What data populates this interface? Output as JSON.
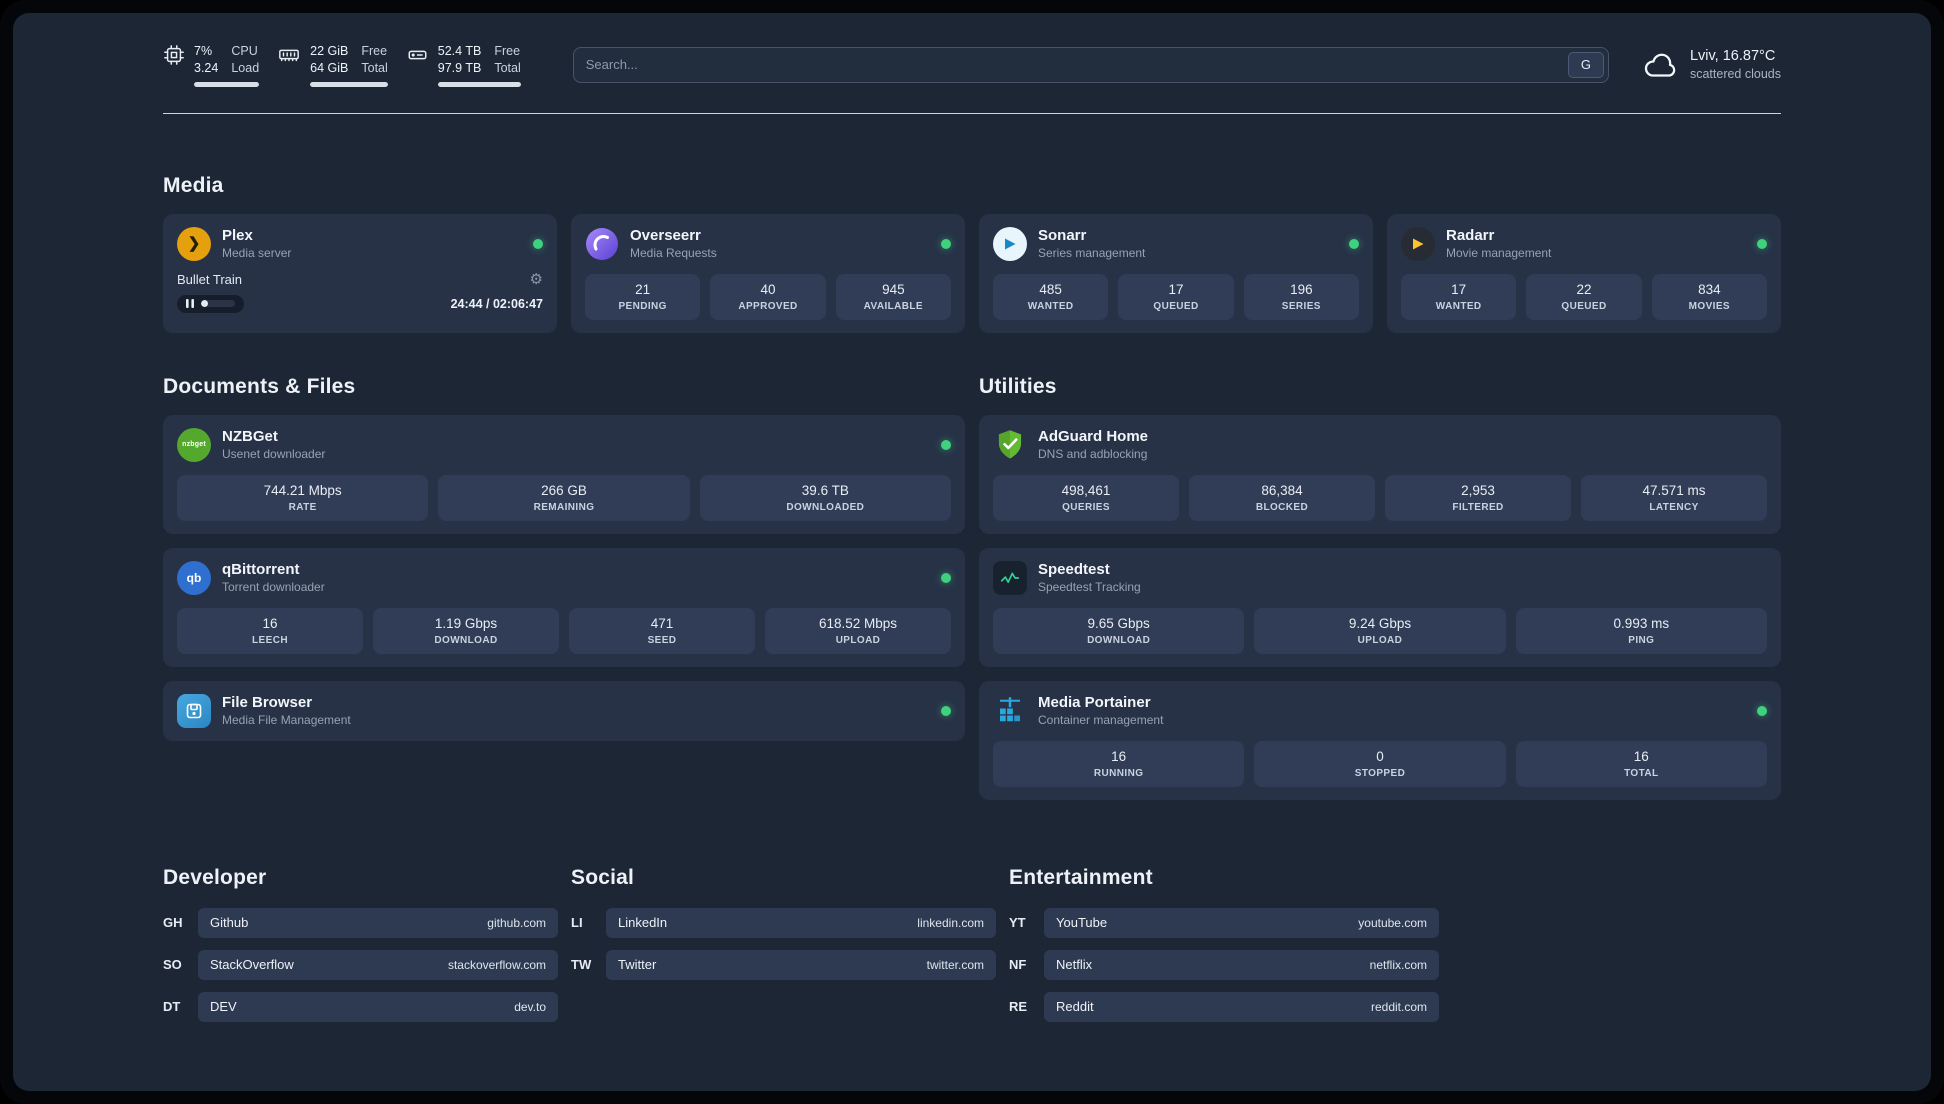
{
  "topbar": {
    "cpu": {
      "value": "7%",
      "value2": "3.24",
      "label": "CPU",
      "label2": "Load",
      "bar_pct": 100
    },
    "ram": {
      "value": "22 GiB",
      "value2": "64 GiB",
      "label": "Free",
      "label2": "Total",
      "bar_pct": 100
    },
    "disk": {
      "value": "52.4 TB",
      "value2": "97.9 TB",
      "label": "Free",
      "label2": "Total",
      "bar_pct": 100
    },
    "search": {
      "placeholder": "Search...",
      "provider_label": "G"
    },
    "weather": {
      "location": "Lviv, 16.87°C",
      "condition": "scattered clouds"
    }
  },
  "media": {
    "title": "Media",
    "plex": {
      "name": "Plex",
      "desc": "Media server",
      "now_playing": "Bullet Train",
      "time": "24:44 / 02:06:47",
      "progress_pct": 20
    },
    "overseerr": {
      "name": "Overseerr",
      "desc": "Media Requests",
      "stats": [
        {
          "value": "21",
          "label": "PENDING"
        },
        {
          "value": "40",
          "label": "APPROVED"
        },
        {
          "value": "945",
          "label": "AVAILABLE"
        }
      ]
    },
    "sonarr": {
      "name": "Sonarr",
      "desc": "Series management",
      "stats": [
        {
          "value": "485",
          "label": "WANTED"
        },
        {
          "value": "17",
          "label": "QUEUED"
        },
        {
          "value": "196",
          "label": "SERIES"
        }
      ]
    },
    "radarr": {
      "name": "Radarr",
      "desc": "Movie management",
      "stats": [
        {
          "value": "17",
          "label": "WANTED"
        },
        {
          "value": "22",
          "label": "QUEUED"
        },
        {
          "value": "834",
          "label": "MOVIES"
        }
      ]
    }
  },
  "documents": {
    "title": "Documents & Files",
    "nzbget": {
      "name": "NZBGet",
      "desc": "Usenet downloader",
      "icon_text": "nzbget",
      "stats": [
        {
          "value": "744.21 Mbps",
          "label": "RATE"
        },
        {
          "value": "266 GB",
          "label": "REMAINING"
        },
        {
          "value": "39.6 TB",
          "label": "DOWNLOADED"
        }
      ]
    },
    "qbittorrent": {
      "name": "qBittorrent",
      "desc": "Torrent downloader",
      "icon_text": "qb",
      "stats": [
        {
          "value": "16",
          "label": "LEECH"
        },
        {
          "value": "1.19 Gbps",
          "label": "DOWNLOAD"
        },
        {
          "value": "471",
          "label": "SEED"
        },
        {
          "value": "618.52 Mbps",
          "label": "UPLOAD"
        }
      ]
    },
    "filebrowser": {
      "name": "File Browser",
      "desc": "Media File Management"
    }
  },
  "utilities": {
    "title": "Utilities",
    "adguard": {
      "name": "AdGuard Home",
      "desc": "DNS and adblocking",
      "stats": [
        {
          "value": "498,461",
          "label": "QUERIES"
        },
        {
          "value": "86,384",
          "label": "BLOCKED"
        },
        {
          "value": "2,953",
          "label": "FILTERED"
        },
        {
          "value": "47.571 ms",
          "label": "LATENCY"
        }
      ]
    },
    "speedtest": {
      "name": "Speedtest",
      "desc": "Speedtest Tracking",
      "stats": [
        {
          "value": "9.65 Gbps",
          "label": "DOWNLOAD"
        },
        {
          "value": "9.24 Gbps",
          "label": "UPLOAD"
        },
        {
          "value": "0.993 ms",
          "label": "PING"
        }
      ]
    },
    "portainer": {
      "name": "Media Portainer",
      "desc": "Container management",
      "stats": [
        {
          "value": "16",
          "label": "RUNNING"
        },
        {
          "value": "0",
          "label": "STOPPED"
        },
        {
          "value": "16",
          "label": "TOTAL"
        }
      ]
    }
  },
  "links": {
    "developer": {
      "title": "Developer",
      "items": [
        {
          "abbr": "GH",
          "name": "Github",
          "url": "github.com"
        },
        {
          "abbr": "SO",
          "name": "StackOverflow",
          "url": "stackoverflow.com"
        },
        {
          "abbr": "DT",
          "name": "DEV",
          "url": "dev.to"
        }
      ]
    },
    "social": {
      "title": "Social",
      "items": [
        {
          "abbr": "LI",
          "name": "LinkedIn",
          "url": "linkedin.com"
        },
        {
          "abbr": "TW",
          "name": "Twitter",
          "url": "twitter.com"
        }
      ]
    },
    "entertainment": {
      "title": "Entertainment",
      "items": [
        {
          "abbr": "YT",
          "name": "YouTube",
          "url": "youtube.com"
        },
        {
          "abbr": "NF",
          "name": "Netflix",
          "url": "netflix.com"
        },
        {
          "abbr": "RE",
          "name": "Reddit",
          "url": "reddit.com"
        }
      ]
    }
  },
  "icons": {
    "plex_glyph": "❯",
    "gear_glyph": "⚙"
  },
  "colors": {
    "page_bg": "#1c2635",
    "card_bg": "#273247",
    "stat_bg": "#313d56",
    "status_online": "#3ed17e",
    "plex_gold": "#e5a00d",
    "overseerr_purple": "#7c3aed",
    "sonarr_blue": "#1687c7",
    "radarr_yellow": "#ffc230",
    "nzbget_green": "#54a92d",
    "qbittorrent_blue": "#2f6fd0",
    "adguard_green": "#63bb34",
    "speedtest_green": "#34d399",
    "filebrowser_blue": "#3f9fd9",
    "portainer_blue": "#29a8df"
  }
}
